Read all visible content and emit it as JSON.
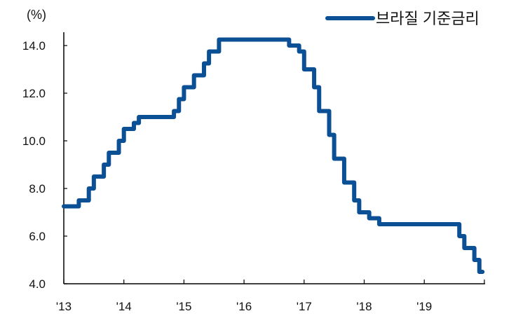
{
  "chart_data": {
    "type": "line",
    "step": true,
    "title": "",
    "ylabel": "(%)",
    "xlabel": "",
    "ylim": [
      4.0,
      14.5
    ],
    "yticks": [
      "4.0",
      "6.0",
      "8.0",
      "10.0",
      "12.0",
      "14.0"
    ],
    "xlim": [
      "2013-01",
      "2020-01"
    ],
    "xticks": [
      {
        "date": "2013-01",
        "label": "'13"
      },
      {
        "date": "2014-01",
        "label": "'14"
      },
      {
        "date": "2015-01",
        "label": "'15"
      },
      {
        "date": "2016-01",
        "label": "'16"
      },
      {
        "date": "2017-01",
        "label": "'17"
      },
      {
        "date": "2018-01",
        "label": "'18"
      },
      {
        "date": "2019-01",
        "label": "'19"
      },
      {
        "date": "2020-01",
        "label": ""
      }
    ],
    "grid": false,
    "legend_position": "top-right",
    "series": [
      {
        "name": "브라질 기준금리",
        "color": "#0b4f95",
        "points": [
          [
            "2013-01",
            7.25
          ],
          [
            "2013-04",
            7.5
          ],
          [
            "2013-06",
            8.0
          ],
          [
            "2013-07",
            8.5
          ],
          [
            "2013-09",
            9.0
          ],
          [
            "2013-10",
            9.5
          ],
          [
            "2013-12",
            10.0
          ],
          [
            "2014-01",
            10.5
          ],
          [
            "2014-03",
            10.75
          ],
          [
            "2014-04",
            11.0
          ],
          [
            "2014-11",
            11.25
          ],
          [
            "2014-12",
            11.75
          ],
          [
            "2015-01",
            12.25
          ],
          [
            "2015-03",
            12.75
          ],
          [
            "2015-05",
            13.25
          ],
          [
            "2015-06",
            13.75
          ],
          [
            "2015-08",
            14.25
          ],
          [
            "2016-10",
            14.0
          ],
          [
            "2016-12",
            13.75
          ],
          [
            "2017-01",
            13.0
          ],
          [
            "2017-03",
            12.25
          ],
          [
            "2017-04",
            11.25
          ],
          [
            "2017-06",
            10.25
          ],
          [
            "2017-07",
            9.25
          ],
          [
            "2017-09",
            8.25
          ],
          [
            "2017-11",
            7.5
          ],
          [
            "2017-12",
            7.0
          ],
          [
            "2018-02",
            6.75
          ],
          [
            "2018-04",
            6.5
          ],
          [
            "2019-08",
            6.0
          ],
          [
            "2019-09",
            5.5
          ],
          [
            "2019-11",
            5.0
          ],
          [
            "2019-12",
            4.5
          ],
          [
            "2019-12-20",
            4.5
          ]
        ]
      }
    ]
  }
}
